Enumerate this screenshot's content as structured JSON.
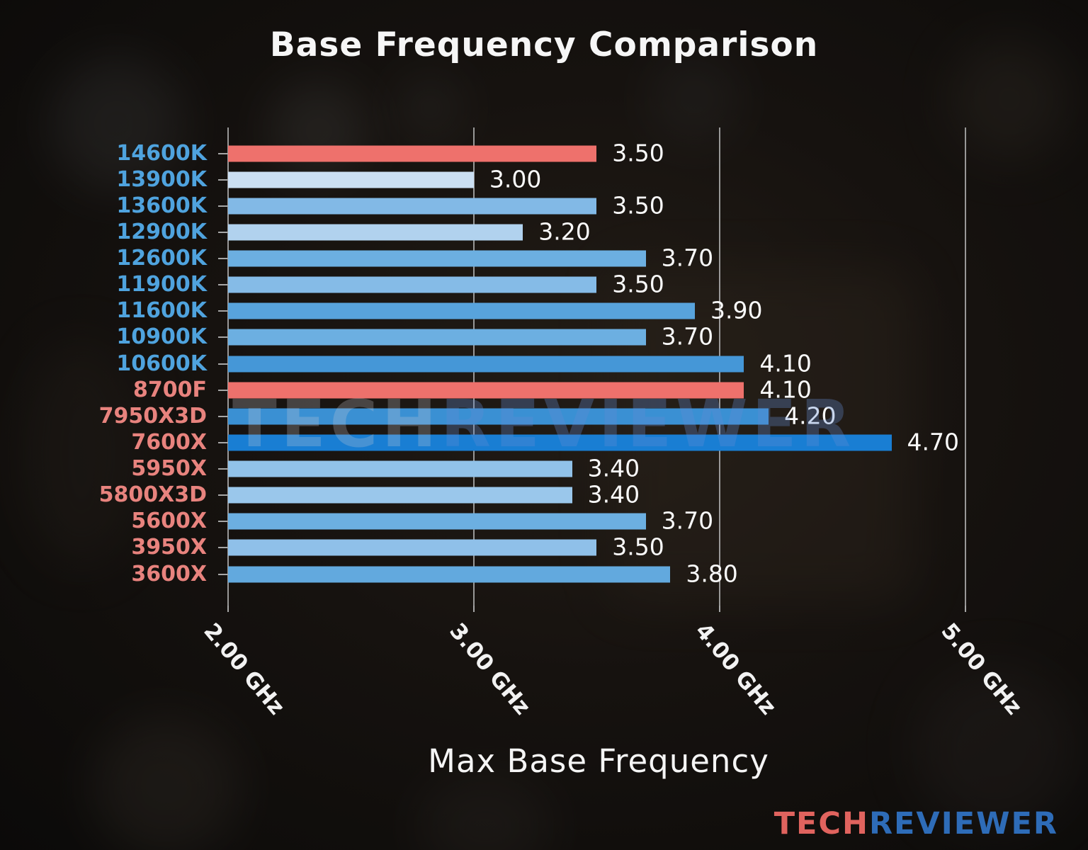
{
  "title": "Base Frequency Comparison",
  "xlabel": "Max Base Frequency",
  "watermark": {
    "left": "TECH",
    "right": "REVIEWER"
  },
  "brand": {
    "left": "TECH",
    "right": "REVIEWER",
    "left_color": "#e0635e",
    "right_color": "#2e6cb8"
  },
  "colors": {
    "intel_label": "#4fa3de",
    "amd_label": "#e8837e",
    "highlight_bar": "#ee716c",
    "grid": "#a6a6a6",
    "text": "#f5f5f5"
  },
  "chart_data": {
    "type": "bar",
    "orientation": "horizontal",
    "title": "Base Frequency Comparison",
    "xlabel": "Max Base Frequency",
    "ylabel": "",
    "xlim": [
      2.0,
      5.5
    ],
    "grid": true,
    "xticks": [
      2.0,
      3.0,
      4.0,
      5.0
    ],
    "xtick_labels": [
      "2.00 GHz",
      "3.00 GHz",
      "4.00 GHz",
      "5.00 GHz"
    ],
    "unit": "GHz",
    "categories": [
      "14600K",
      "13900K",
      "13600K",
      "12900K",
      "12600K",
      "11900K",
      "11600K",
      "10900K",
      "10600K",
      "8700F",
      "7950X3D",
      "7600X",
      "5950X",
      "5800X3D",
      "5600X",
      "3950X",
      "3600X"
    ],
    "values": [
      3.5,
      3.0,
      3.5,
      3.2,
      3.7,
      3.5,
      3.9,
      3.7,
      4.1,
      4.1,
      4.2,
      4.7,
      3.4,
      3.4,
      3.7,
      3.5,
      3.8
    ],
    "bars": [
      {
        "label": "14600K",
        "value": 3.5,
        "display": "3.50",
        "bar_color": "#ee716c",
        "label_color": "#4fa3de",
        "highlighted": true
      },
      {
        "label": "13900K",
        "value": 3.0,
        "display": "3.00",
        "bar_color": "#cbdff2",
        "label_color": "#4fa3de",
        "highlighted": false
      },
      {
        "label": "13600K",
        "value": 3.5,
        "display": "3.50",
        "bar_color": "#82b9e6",
        "label_color": "#4fa3de",
        "highlighted": false
      },
      {
        "label": "12900K",
        "value": 3.2,
        "display": "3.20",
        "bar_color": "#b1d2ee",
        "label_color": "#4fa3de",
        "highlighted": false
      },
      {
        "label": "12600K",
        "value": 3.7,
        "display": "3.70",
        "bar_color": "#6cafe1",
        "label_color": "#4fa3de",
        "highlighted": false
      },
      {
        "label": "11900K",
        "value": 3.5,
        "display": "3.50",
        "bar_color": "#85bbe7",
        "label_color": "#4fa3de",
        "highlighted": false
      },
      {
        "label": "11600K",
        "value": 3.9,
        "display": "3.90",
        "bar_color": "#58a3dc",
        "label_color": "#4fa3de",
        "highlighted": false
      },
      {
        "label": "10900K",
        "value": 3.7,
        "display": "3.70",
        "bar_color": "#6cafe1",
        "label_color": "#4fa3de",
        "highlighted": false
      },
      {
        "label": "10600K",
        "value": 4.1,
        "display": "4.10",
        "bar_color": "#4597d7",
        "label_color": "#4fa3de",
        "highlighted": false
      },
      {
        "label": "8700F",
        "value": 4.1,
        "display": "4.10",
        "bar_color": "#ee716c",
        "label_color": "#e8837e",
        "highlighted": true
      },
      {
        "label": "7950X3D",
        "value": 4.2,
        "display": "4.20",
        "bar_color": "#3a90d3",
        "label_color": "#e8837e",
        "highlighted": false
      },
      {
        "label": "7600X",
        "value": 4.7,
        "display": "4.70",
        "bar_color": "#197ed3",
        "label_color": "#e8837e",
        "highlighted": false
      },
      {
        "label": "5950X",
        "value": 3.4,
        "display": "3.40",
        "bar_color": "#91c2e9",
        "label_color": "#e8837e",
        "highlighted": false
      },
      {
        "label": "5800X3D",
        "value": 3.4,
        "display": "3.40",
        "bar_color": "#9ac7eb",
        "label_color": "#e8837e",
        "highlighted": false
      },
      {
        "label": "5600X",
        "value": 3.7,
        "display": "3.70",
        "bar_color": "#6cafe1",
        "label_color": "#e8837e",
        "highlighted": false
      },
      {
        "label": "3950X",
        "value": 3.5,
        "display": "3.50",
        "bar_color": "#8fc0e9",
        "label_color": "#e8837e",
        "highlighted": false
      },
      {
        "label": "3600X",
        "value": 3.8,
        "display": "3.80",
        "bar_color": "#62a9de",
        "label_color": "#e8837e",
        "highlighted": false
      }
    ]
  }
}
